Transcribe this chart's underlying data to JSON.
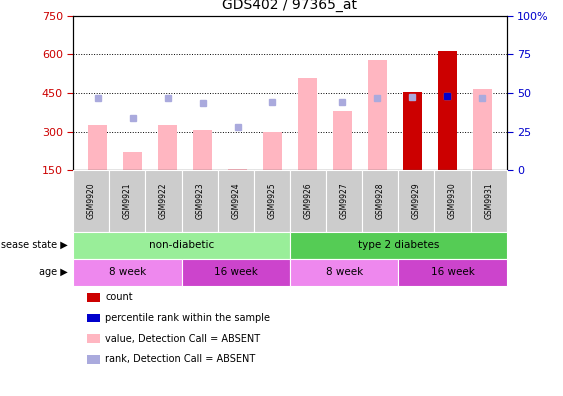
{
  "title": "GDS402 / 97365_at",
  "samples": [
    "GSM9920",
    "GSM9921",
    "GSM9922",
    "GSM9923",
    "GSM9924",
    "GSM9925",
    "GSM9926",
    "GSM9927",
    "GSM9928",
    "GSM9929",
    "GSM9930",
    "GSM9931"
  ],
  "value_bars": [
    325,
    220,
    325,
    305,
    155,
    300,
    510,
    380,
    580,
    455,
    615,
    465
  ],
  "rank_dots": [
    430,
    355,
    430,
    410,
    320,
    415,
    null,
    415,
    430,
    435,
    440,
    430
  ],
  "count_bar_idx": 10,
  "count_bar_value": 615,
  "percentile_bar_idx": 9,
  "percentile_dot_idx": 10,
  "percentile_dot_value": 440,
  "ylim_left": [
    150,
    750
  ],
  "ylim_right": [
    0,
    100
  ],
  "yticks_left": [
    150,
    300,
    450,
    600,
    750
  ],
  "yticks_right": [
    0,
    25,
    50,
    75,
    100
  ],
  "color_value_bar": "#FFB6C1",
  "color_rank_dot": "#AAAADD",
  "color_count_bar": "#CC0000",
  "color_percentile_dot": "#0000CC",
  "color_left_axis": "#CC0000",
  "color_right_axis": "#0000CC",
  "disease_state_groups": [
    {
      "label": "non-diabetic",
      "start": 0,
      "end": 6,
      "color": "#99EE99"
    },
    {
      "label": "type 2 diabetes",
      "start": 6,
      "end": 12,
      "color": "#55CC55"
    }
  ],
  "age_groups": [
    {
      "label": "8 week",
      "start": 0,
      "end": 3,
      "color": "#EE88EE"
    },
    {
      "label": "16 week",
      "start": 3,
      "end": 6,
      "color": "#CC44CC"
    },
    {
      "label": "8 week",
      "start": 6,
      "end": 9,
      "color": "#EE88EE"
    },
    {
      "label": "16 week",
      "start": 9,
      "end": 12,
      "color": "#CC44CC"
    }
  ],
  "legend_items": [
    {
      "label": "count",
      "color": "#CC0000"
    },
    {
      "label": "percentile rank within the sample",
      "color": "#0000CC"
    },
    {
      "label": "value, Detection Call = ABSENT",
      "color": "#FFB6C1"
    },
    {
      "label": "rank, Detection Call = ABSENT",
      "color": "#AAAADD"
    }
  ],
  "bar_width": 0.55,
  "sample_count": 12,
  "sample_box_color": "#CCCCCC",
  "bg_color": "#FFFFFF"
}
